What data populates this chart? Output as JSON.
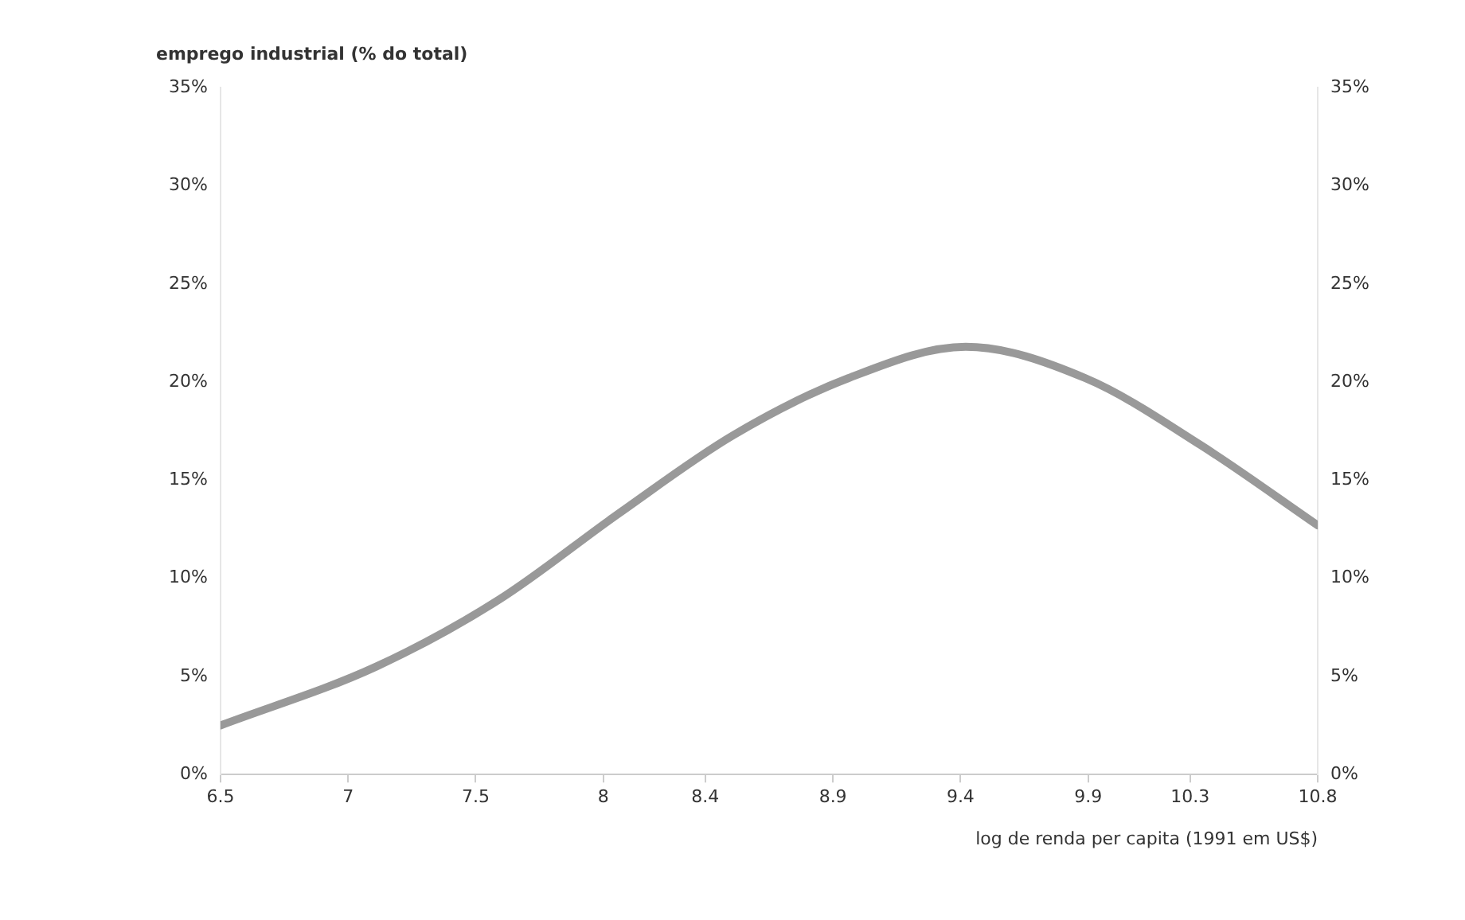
{
  "chart_data": {
    "type": "line",
    "ylabel": "emprego industrial (% do total)",
    "xlabel": "log de renda per capita (1991 em US$)",
    "series": [
      {
        "color": "#999999",
        "x": [
          6.5,
          7.11,
          7.59,
          8.06,
          8.51,
          8.96,
          9.42,
          9.89,
          10.34,
          10.8
        ],
        "values": [
          2.5,
          5.5,
          8.9,
          13.3,
          17.3,
          20.2,
          21.8,
          20.2,
          16.8,
          12.7
        ]
      }
    ],
    "xlim": [
      6.5,
      10.8
    ],
    "xticks": [
      6.5,
      7,
      7.5,
      8,
      8.4,
      8.9,
      9.4,
      9.9,
      10.3,
      10.8
    ],
    "ylim": [
      0,
      35
    ],
    "yticks": [
      {
        "value": 0,
        "label": "0%"
      },
      {
        "value": 5,
        "label": "5%"
      },
      {
        "value": 10,
        "label": "10%"
      },
      {
        "value": 15,
        "label": "15%"
      },
      {
        "value": 20,
        "label": "20%"
      },
      {
        "value": 25,
        "label": "25%"
      },
      {
        "value": 30,
        "label": "30%"
      },
      {
        "value": 35,
        "label": "35%"
      }
    ],
    "y2lim": [
      0,
      35
    ],
    "y2ticks": [
      {
        "value": 0,
        "label": "0%"
      },
      {
        "value": 5,
        "label": "5%"
      },
      {
        "value": 10,
        "label": "10%"
      },
      {
        "value": 15,
        "label": "15%"
      },
      {
        "value": 20,
        "label": "20%"
      },
      {
        "value": 25,
        "label": "25%"
      },
      {
        "value": 30,
        "label": "30%"
      },
      {
        "value": 35,
        "label": "35%"
      }
    ],
    "grid": false,
    "legend": false,
    "marker": "none",
    "line_style": "solid"
  }
}
